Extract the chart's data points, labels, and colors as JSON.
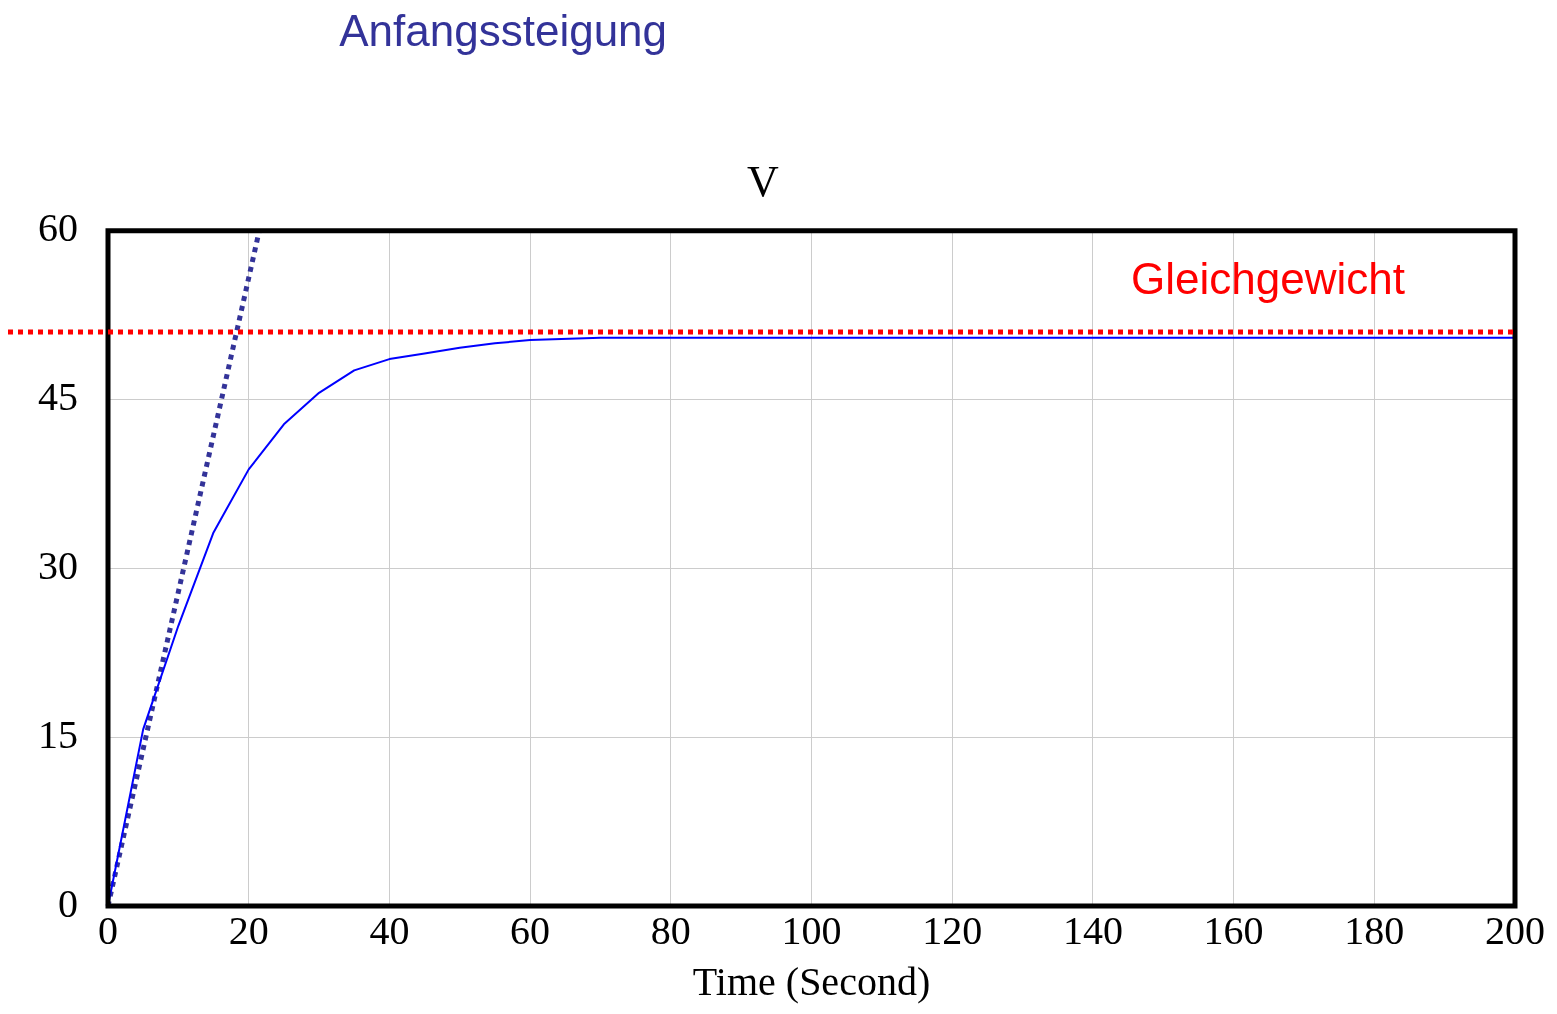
{
  "chart_data": {
    "type": "line",
    "title": "V",
    "xlabel": "Time (Second)",
    "xlim": [
      0,
      200
    ],
    "xticks": [
      0,
      20,
      40,
      60,
      80,
      100,
      120,
      140,
      160,
      180,
      200
    ],
    "ylim": [
      0,
      60
    ],
    "yticks": [
      0,
      15,
      30,
      45,
      60
    ],
    "grid": true,
    "legend": false,
    "marker": "none",
    "series": [
      {
        "color": "#0000ff",
        "line_style": "solid",
        "x": [
          0,
          5,
          10,
          15,
          20,
          25,
          30,
          35,
          40,
          45,
          50,
          55,
          60,
          70,
          200
        ],
        "values": [
          0,
          15.7,
          24.9,
          33.2,
          38.8,
          42.8,
          45.6,
          47.6,
          48.6,
          49.1,
          49.6,
          50.0,
          50.3,
          50.5,
          50.5
        ]
      },
      {
        "name": "Anfangssteigung",
        "color": "#333399",
        "line_style": "dotted",
        "x": [
          0,
          21.5
        ],
        "values": [
          0,
          60
        ]
      }
    ],
    "ref_lines": [
      {
        "axis": "y",
        "value": 51,
        "label": "Gleichgewicht",
        "color": "#ff0000",
        "line_style": "dotted"
      }
    ]
  }
}
